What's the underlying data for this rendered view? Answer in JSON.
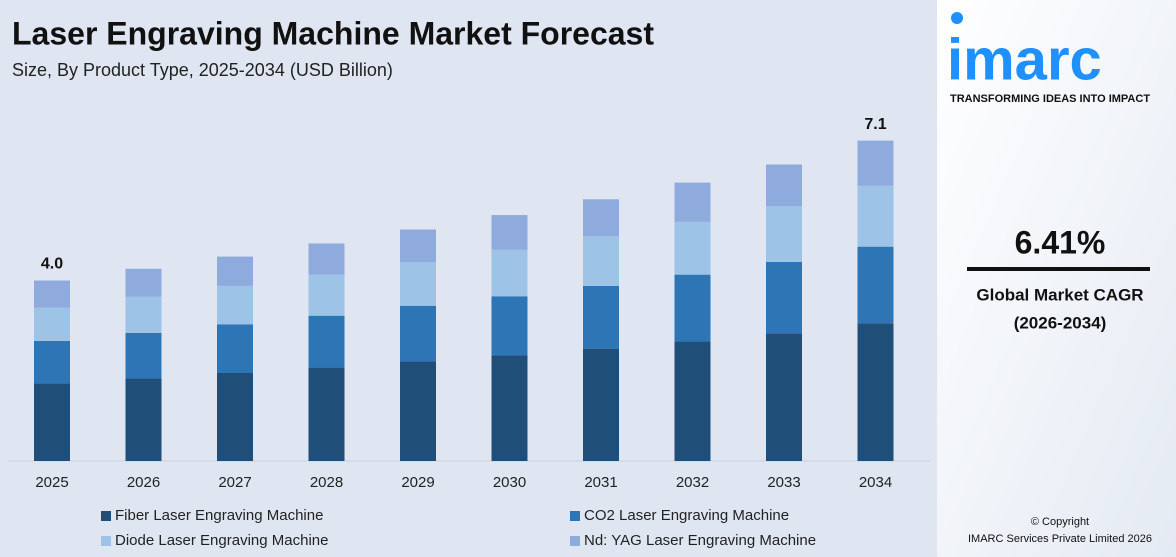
{
  "chart_data": {
    "type": "stacked-bar",
    "title": "Laser Engraving Machine Market Forecast",
    "subtitle": "Size, By Product Type, 2025-2034 (USD Billion)",
    "categories": [
      "2025",
      "2026",
      "2027",
      "2028",
      "2029",
      "2030",
      "2031",
      "2032",
      "2033",
      "2034"
    ],
    "series": [
      {
        "name": "Fiber Laser Engraving Machine",
        "color": "#1f4e79",
        "values": [
          1.72,
          1.83,
          1.95,
          2.07,
          2.21,
          2.34,
          2.49,
          2.65,
          2.83,
          3.05
        ]
      },
      {
        "name": "CO2 Laser Engraving Machine",
        "color": "#2e75b6",
        "values": [
          0.94,
          1.01,
          1.08,
          1.15,
          1.23,
          1.31,
          1.39,
          1.48,
          1.58,
          1.7
        ]
      },
      {
        "name": "Diode Laser Engraving Machine",
        "color": "#9dc3e6",
        "values": [
          0.74,
          0.8,
          0.85,
          0.91,
          0.97,
          1.03,
          1.1,
          1.17,
          1.24,
          1.35
        ]
      },
      {
        "name": "Nd: YAG Laser Engraving Machine",
        "color": "#8faadc",
        "values": [
          0.6,
          0.62,
          0.65,
          0.69,
          0.72,
          0.77,
          0.82,
          0.87,
          0.92,
          1.0
        ]
      }
    ],
    "totals": [
      4.0,
      null,
      null,
      null,
      null,
      null,
      null,
      null,
      null,
      7.1
    ],
    "total_labels": [
      "4.0",
      null,
      null,
      null,
      null,
      null,
      null,
      null,
      null,
      "7.1"
    ],
    "ylim": [
      0,
      8
    ]
  },
  "sidebar": {
    "logo": "imarc",
    "tagline": "TRANSFORMING IDEAS INTO IMPACT",
    "cagr": "6.41%",
    "cagr_label": "Global Market CAGR",
    "cagr_period": "(2026-2034)",
    "copyright": "© Copyright",
    "company": "IMARC Services Private Limited 2026"
  }
}
